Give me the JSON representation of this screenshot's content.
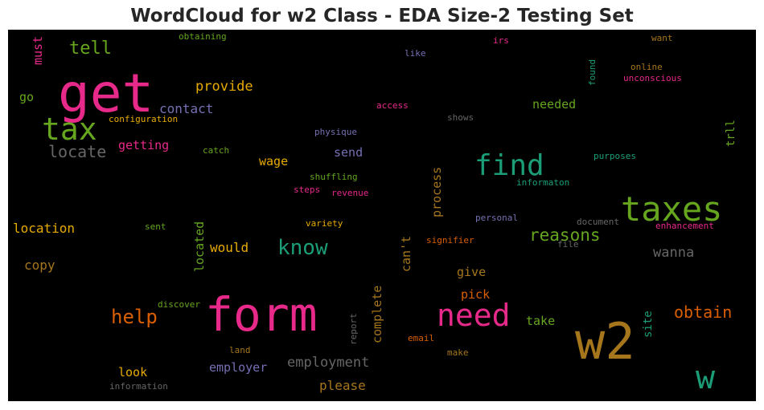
{
  "title": "WordCloud for w2 Class - EDA Size-2 Testing Set",
  "chart_data": {
    "type": "wordcloud",
    "title": "WordCloud for w2 Class - EDA Size-2 Testing Set",
    "background": "#000000",
    "words": [
      {
        "text": "get",
        "color": "#e7298a"
      },
      {
        "text": "form",
        "color": "#e7298a"
      },
      {
        "text": "w2",
        "color": "#a6761d"
      },
      {
        "text": "taxes",
        "color": "#66a61e"
      },
      {
        "text": "tax",
        "color": "#66a61e"
      },
      {
        "text": "find",
        "color": "#1b9e77"
      },
      {
        "text": "need",
        "color": "#e7298a"
      },
      {
        "text": "w",
        "color": "#1b9e77"
      },
      {
        "text": "know",
        "color": "#1b9e77"
      },
      {
        "text": "reasons",
        "color": "#66a61e"
      },
      {
        "text": "locate",
        "color": "#666666"
      },
      {
        "text": "help",
        "color": "#d95f02"
      },
      {
        "text": "obtain",
        "color": "#d95f02"
      },
      {
        "text": "tell",
        "color": "#66a61e"
      },
      {
        "text": "provide",
        "color": "#e6ab02"
      },
      {
        "text": "employment",
        "color": "#666666"
      },
      {
        "text": "wanna",
        "color": "#666666"
      },
      {
        "text": "contact",
        "color": "#7570b3"
      },
      {
        "text": "needed",
        "color": "#66a61e"
      },
      {
        "text": "getting",
        "color": "#e7298a"
      },
      {
        "text": "location",
        "color": "#e6ab02"
      },
      {
        "text": "process",
        "color": "#a6761d"
      },
      {
        "text": "complete",
        "color": "#a6761d"
      },
      {
        "text": "located",
        "color": "#66a61e"
      },
      {
        "text": "can't",
        "color": "#a6761d"
      },
      {
        "text": "would",
        "color": "#e6ab02"
      },
      {
        "text": "employer",
        "color": "#7570b3"
      },
      {
        "text": "please",
        "color": "#a6761d"
      },
      {
        "text": "wage",
        "color": "#e6ab02"
      },
      {
        "text": "send",
        "color": "#7570b3"
      },
      {
        "text": "copy",
        "color": "#a6761d"
      },
      {
        "text": "give",
        "color": "#a6761d"
      },
      {
        "text": "take",
        "color": "#66a61e"
      },
      {
        "text": "pick",
        "color": "#d95f02"
      },
      {
        "text": "look",
        "color": "#e6ab02"
      },
      {
        "text": "must",
        "color": "#e7298a"
      },
      {
        "text": "go",
        "color": "#66a61e"
      },
      {
        "text": "site",
        "color": "#1b9e77"
      },
      {
        "text": "trll",
        "color": "#66a61e"
      },
      {
        "text": "obtaining",
        "color": "#66a61e"
      },
      {
        "text": "like",
        "color": "#7570b3"
      },
      {
        "text": "irs",
        "color": "#e7298a"
      },
      {
        "text": "want",
        "color": "#a6761d"
      },
      {
        "text": "found",
        "color": "#1b9e77"
      },
      {
        "text": "online",
        "color": "#a6761d"
      },
      {
        "text": "unconscious",
        "color": "#e7298a"
      },
      {
        "text": "access",
        "color": "#e7298a"
      },
      {
        "text": "shows",
        "color": "#666666"
      },
      {
        "text": "configuration",
        "color": "#e6ab02"
      },
      {
        "text": "physique",
        "color": "#7570b3"
      },
      {
        "text": "catch",
        "color": "#66a61e"
      },
      {
        "text": "purposes",
        "color": "#1b9e77"
      },
      {
        "text": "shuffling",
        "color": "#66a61e"
      },
      {
        "text": "informaton",
        "color": "#1b9e77"
      },
      {
        "text": "steps",
        "color": "#e7298a"
      },
      {
        "text": "revenue",
        "color": "#e7298a"
      },
      {
        "text": "sent",
        "color": "#66a61e"
      },
      {
        "text": "variety",
        "color": "#e6ab02"
      },
      {
        "text": "personal",
        "color": "#7570b3"
      },
      {
        "text": "document",
        "color": "#666666"
      },
      {
        "text": "enhancement",
        "color": "#e7298a"
      },
      {
        "text": "signifier",
        "color": "#d95f02"
      },
      {
        "text": "file",
        "color": "#666666"
      },
      {
        "text": "discover",
        "color": "#66a61e"
      },
      {
        "text": "report",
        "color": "#666666"
      },
      {
        "text": "email",
        "color": "#d95f02"
      },
      {
        "text": "make",
        "color": "#a6761d"
      },
      {
        "text": "land",
        "color": "#a6761d"
      },
      {
        "text": "information",
        "color": "#666666"
      }
    ]
  }
}
